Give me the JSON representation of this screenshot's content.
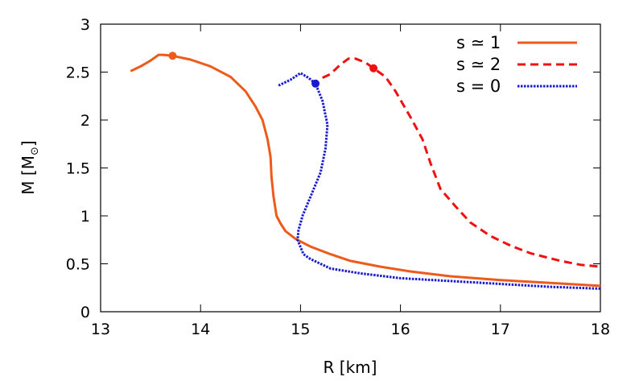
{
  "chart_data": {
    "type": "line",
    "title": "",
    "xlabel": "R [km]",
    "ylabel_main": "M [M",
    "ylabel_symbol": "⊙",
    "ylabel_close": "]",
    "xlim": [
      13,
      18
    ],
    "ylim": [
      0,
      3
    ],
    "xticks": [
      {
        "value": 13,
        "label": "13"
      },
      {
        "value": 14,
        "label": "14"
      },
      {
        "value": 15,
        "label": "15"
      },
      {
        "value": 16,
        "label": "16"
      },
      {
        "value": 17,
        "label": "17"
      },
      {
        "value": 18,
        "label": "18"
      }
    ],
    "yticks": [
      {
        "value": 0,
        "label": "0"
      },
      {
        "value": 0.5,
        "label": "0.5"
      },
      {
        "value": 1,
        "label": "1"
      },
      {
        "value": 1.5,
        "label": "1.5"
      },
      {
        "value": 2,
        "label": "2"
      },
      {
        "value": 2.5,
        "label": "2.5"
      },
      {
        "value": 3,
        "label": "3"
      }
    ],
    "grid": false,
    "legend_position": "top-right",
    "series": [
      {
        "name": "s ≃ 1",
        "color": "#ee5a1a",
        "style": "solid",
        "marker": {
          "x": 13.72,
          "y": 2.67
        },
        "points": [
          [
            13.3,
            2.51
          ],
          [
            13.4,
            2.56
          ],
          [
            13.5,
            2.62
          ],
          [
            13.58,
            2.68
          ],
          [
            13.63,
            2.68
          ],
          [
            13.72,
            2.67
          ],
          [
            13.9,
            2.63
          ],
          [
            14.1,
            2.56
          ],
          [
            14.3,
            2.45
          ],
          [
            14.45,
            2.3
          ],
          [
            14.55,
            2.14
          ],
          [
            14.62,
            2.0
          ],
          [
            14.67,
            1.8
          ],
          [
            14.7,
            1.62
          ],
          [
            14.71,
            1.4
          ],
          [
            14.73,
            1.2
          ],
          [
            14.76,
            1.0
          ],
          [
            14.8,
            0.92
          ],
          [
            14.85,
            0.84
          ],
          [
            14.95,
            0.76
          ],
          [
            15.1,
            0.68
          ],
          [
            15.3,
            0.6
          ],
          [
            15.5,
            0.53
          ],
          [
            15.8,
            0.47
          ],
          [
            16.1,
            0.42
          ],
          [
            16.5,
            0.37
          ],
          [
            17.0,
            0.33
          ],
          [
            17.5,
            0.3
          ],
          [
            18.0,
            0.27
          ]
        ]
      },
      {
        "name": "s ≃ 2",
        "color": "#ee1111",
        "style": "dashed",
        "marker": {
          "x": 15.73,
          "y": 2.54
        },
        "points": [
          [
            15.22,
            2.44
          ],
          [
            15.3,
            2.48
          ],
          [
            15.4,
            2.58
          ],
          [
            15.48,
            2.64
          ],
          [
            15.55,
            2.64
          ],
          [
            15.65,
            2.6
          ],
          [
            15.73,
            2.54
          ],
          [
            15.85,
            2.45
          ],
          [
            15.95,
            2.3
          ],
          [
            16.1,
            2.03
          ],
          [
            16.22,
            1.8
          ],
          [
            16.3,
            1.55
          ],
          [
            16.4,
            1.28
          ],
          [
            16.55,
            1.1
          ],
          [
            16.7,
            0.93
          ],
          [
            16.9,
            0.79
          ],
          [
            17.1,
            0.69
          ],
          [
            17.3,
            0.61
          ],
          [
            17.6,
            0.53
          ],
          [
            17.8,
            0.49
          ],
          [
            18.0,
            0.47
          ]
        ]
      },
      {
        "name": "s = 0",
        "color": "#1a1ad0",
        "style": "dotted",
        "marker": {
          "x": 15.15,
          "y": 2.38
        },
        "points": [
          [
            14.78,
            2.36
          ],
          [
            14.9,
            2.42
          ],
          [
            15.0,
            2.49
          ],
          [
            15.08,
            2.44
          ],
          [
            15.15,
            2.38
          ],
          [
            15.22,
            2.2
          ],
          [
            15.27,
            1.95
          ],
          [
            15.25,
            1.7
          ],
          [
            15.2,
            1.45
          ],
          [
            15.1,
            1.2
          ],
          [
            15.02,
            1.0
          ],
          [
            14.98,
            0.85
          ],
          [
            14.97,
            0.75
          ],
          [
            15.03,
            0.6
          ],
          [
            15.1,
            0.55
          ],
          [
            15.3,
            0.45
          ],
          [
            15.6,
            0.4
          ],
          [
            16.0,
            0.35
          ],
          [
            16.5,
            0.32
          ],
          [
            17.0,
            0.29
          ],
          [
            17.5,
            0.26
          ],
          [
            18.0,
            0.24
          ]
        ]
      }
    ]
  }
}
